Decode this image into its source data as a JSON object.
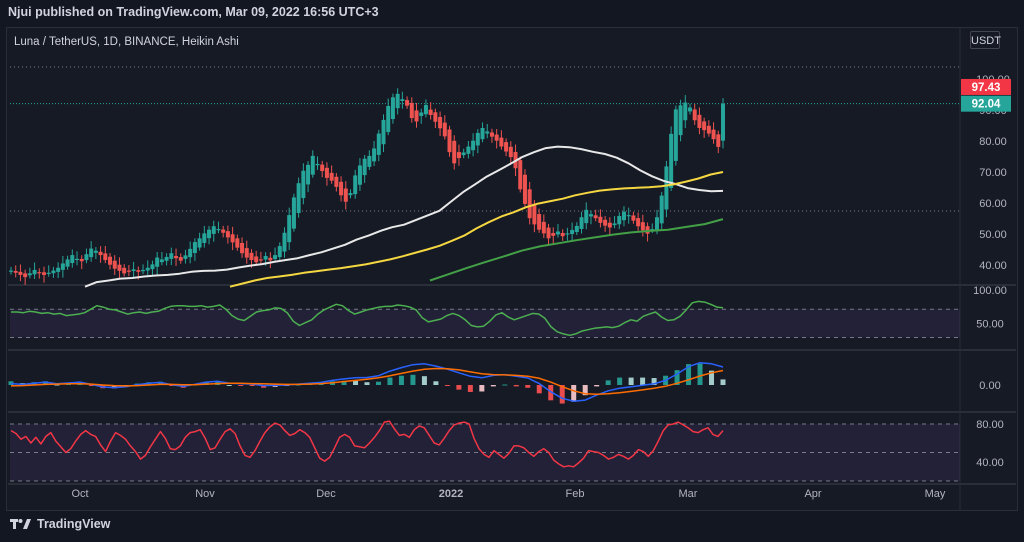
{
  "header": {
    "text": "Njui published on TradingView.com, Mar 09, 2022 16:56 UTC+3"
  },
  "symbol": {
    "text": "Luna / TetherUS, 1D, BINANCE, Heikin Ashi"
  },
  "currency": {
    "label": "USDT"
  },
  "footer": {
    "brand": "TradingView",
    "logo_icon": "tradingview-logo-icon"
  },
  "colors": {
    "up": "#26a69a",
    "down": "#ef5350",
    "ma_white": "#e8e8e8",
    "ma_yellow": "#f5d742",
    "ma_green": "#43a047",
    "rsi": "#4caf50",
    "stoch": "#f23645",
    "macd": "#2962ff",
    "signal": "#ff6d00"
  },
  "chart_data": [
    {
      "type": "candlestick",
      "title": "Luna / TetherUS, 1D, BINANCE, Heikin Ashi",
      "x_labels": [
        "Oct",
        "Nov",
        "Dec",
        "2022",
        "Feb",
        "Mar",
        "Apr",
        "May"
      ],
      "y_ticks": [
        "100.00",
        "90.00",
        "80.00",
        "70.00",
        "60.00",
        "50.00",
        "40.00"
      ],
      "ylim": [
        35,
        107
      ],
      "badges": [
        {
          "label": "97.43",
          "value": 97.43,
          "color": "#f23645"
        },
        {
          "label": "92.04",
          "value": 92.04,
          "color": "#26a69a"
        }
      ],
      "close": [
        38.2,
        37.5,
        36.8,
        36.1,
        37.3,
        38.4,
        37.6,
        36.8,
        37.5,
        38.2,
        39.1,
        40.5,
        41.8,
        43.2,
        42.0,
        41.2,
        43.5,
        45.3,
        44.6,
        43.2,
        41.6,
        40.1,
        38.8,
        38.1,
        37.3,
        37.9,
        38.6,
        37.8,
        38.4,
        39.1,
        40.2,
        42.4,
        41.8,
        42.6,
        43.8,
        42.2,
        41.4,
        43.1,
        45.2,
        47.4,
        48.6,
        50.2,
        51.4,
        52.5,
        51.6,
        50.4,
        48.9,
        47.3,
        45.6,
        43.8,
        42.4,
        41.6,
        40.9,
        41.7,
        42.9,
        41.5,
        43.2,
        46.1,
        50.4,
        56.1,
        61.8,
        66.4,
        70.4,
        72.3,
        75.2,
        72.6,
        70.3,
        68.1,
        67.2,
        65.2,
        62.5,
        60.4,
        63.2,
        68.9,
        72.1,
        74.3,
        75.2,
        77.6,
        82.4,
        86.8,
        91.3,
        94.1,
        95.2,
        93.5,
        91.4,
        87.4,
        86.3,
        89.2,
        91.6,
        88.4,
        86.2,
        84.1,
        81.5,
        76.4,
        72.8,
        74.5,
        76.3,
        78.2,
        80.1,
        82.6,
        84.2,
        83.1,
        81.4,
        80.1,
        78.2,
        76.6,
        74.8,
        71.2,
        64.4,
        59.7,
        55.1,
        53.1,
        51.4,
        50.2,
        48.6,
        49.4,
        50.8,
        49.3,
        50.2,
        51.3,
        52.6,
        55.4,
        57.8,
        56.4,
        55.1,
        53.6,
        52.7,
        52.1,
        53.4,
        55.8,
        57.2,
        56.1,
        54.3,
        52.5,
        51.2,
        50.1,
        51.6,
        55.4,
        62.4,
        71.8,
        82.3,
        90.2,
        91.5,
        92.4,
        90.8,
        86.7,
        84.2,
        83.5,
        82.4,
        80.6,
        78.1,
        92.04
      ],
      "ma_white": [
        33,
        34.5,
        35,
        35.6,
        35.8,
        36.3,
        36.6,
        36.8,
        37.2,
        37.8,
        38.1,
        38.2,
        38.5,
        39.2,
        39.8,
        40.3,
        41.0,
        41.6,
        42.2,
        43.2,
        44.1,
        45.3,
        46.5,
        48.2,
        49.5,
        51.0,
        52.2,
        53.0,
        54.5,
        56.0,
        57.5,
        60.5,
        63.5,
        66.0,
        68.5,
        70.5,
        72.6,
        74.8,
        76.4,
        77.7,
        78.2,
        78.0,
        77.4,
        76.5,
        75.8,
        74.6,
        72.8,
        70.5,
        68.6,
        67.1,
        66.1,
        64.8,
        64.2,
        63.8,
        63.9
      ],
      "ma_yellow": [
        33,
        34.0,
        35.0,
        35.8,
        36.3,
        36.8,
        37.5,
        38.0,
        38.5,
        39.0,
        39.6,
        40.2,
        41.0,
        41.8,
        42.8,
        43.9,
        45.0,
        46.2,
        47.8,
        49.5,
        51.8,
        53.8,
        55.6,
        57.0,
        58.6,
        59.8,
        60.6,
        61.4,
        62.5,
        63.3,
        64.0,
        64.4,
        64.7,
        64.9,
        65.1,
        65.4,
        66.0,
        66.9,
        67.9,
        69.2,
        70.0
      ],
      "ma_green": [
        35,
        37.0,
        39.0,
        40.9,
        42.7,
        44.6,
        46.0,
        47.0,
        48.0,
        48.9,
        49.8,
        50.5,
        51.0,
        51.4,
        52.3,
        53.2,
        54.8
      ],
      "rsi": {
        "y_ticks": [
          "100.00",
          "50.00"
        ],
        "values": [
          66,
          66,
          65,
          67,
          66,
          64,
          65,
          63,
          64,
          61,
          62,
          63,
          65,
          70,
          75,
          73,
          70,
          69,
          66,
          63,
          65,
          66,
          64,
          66,
          67,
          71,
          74,
          75,
          75,
          74,
          74,
          75,
          73,
          74,
          76,
          70,
          61,
          56,
          54,
          60,
          66,
          68,
          69,
          72,
          71,
          65,
          53,
          47,
          51,
          55,
          63,
          69,
          73,
          77,
          75,
          68,
          63,
          66,
          69,
          71,
          73,
          74,
          74,
          76,
          75,
          73,
          69,
          58,
          52,
          54,
          56,
          61,
          64,
          61,
          55,
          47,
          45,
          46,
          53,
          62,
          65,
          59,
          55,
          58,
          61,
          64,
          63,
          57,
          45,
          38,
          35,
          33,
          35,
          39,
          41,
          43,
          44,
          45,
          44,
          46,
          51,
          55,
          53,
          60,
          63,
          66,
          59,
          54,
          55,
          60,
          69,
          79,
          81,
          80,
          77,
          73,
          72
        ]
      },
      "macd": {
        "y_ticks": [
          "0.00"
        ],
        "macd": [
          0.5,
          0.2,
          0.6,
          1.0,
          0.4,
          0.7,
          1.0,
          0.2,
          -0.7,
          -0.9,
          -0.6,
          0.1,
          0.6,
          0.9,
          0.1,
          -0.5,
          0.2,
          1.0,
          1.3,
          0.6,
          0.5,
          0.3,
          -0.2,
          -0.1,
          0.0,
          0.3,
          0.6,
          0.9,
          1.6,
          2.1,
          2.5,
          2.6,
          3.2,
          4.8,
          6.0,
          7.0,
          7.3,
          6.5,
          5.5,
          4.2,
          3.0,
          2.5,
          3.3,
          3.6,
          3.0,
          2.4,
          0.5,
          -2.3,
          -4.6,
          -5.6,
          -5.2,
          -3.5,
          -2.0,
          -1.1,
          -0.6,
          -0.1,
          0.4,
          1.6,
          3.8,
          6.3,
          7.7,
          7.3,
          6.2
        ],
        "signal": [
          -0.3,
          -0.2,
          0.0,
          0.2,
          0.3,
          0.4,
          0.4,
          0.3,
          0.0,
          -0.2,
          -0.3,
          -0.2,
          0.0,
          0.2,
          0.2,
          0.1,
          0.1,
          0.3,
          0.5,
          0.6,
          0.6,
          0.5,
          0.4,
          0.3,
          0.2,
          0.2,
          0.3,
          0.5,
          0.8,
          1.2,
          1.6,
          2.0,
          2.5,
          3.2,
          4.0,
          4.8,
          5.4,
          5.7,
          5.6,
          5.2,
          4.5,
          3.9,
          3.6,
          3.5,
          3.3,
          3.0,
          2.3,
          1.0,
          -0.6,
          -2.0,
          -3.0,
          -3.2,
          -3.0,
          -2.7,
          -2.2,
          -1.7,
          -1.1,
          -0.4,
          0.6,
          1.8,
          3.1,
          4.2,
          5.0
        ]
      },
      "stoch_rsi": {
        "y_ticks": [
          "80.00",
          "40.00"
        ],
        "values": [
          73,
          70,
          64,
          67,
          60,
          66,
          59,
          67,
          71,
          62,
          56,
          50,
          54,
          62,
          69,
          73,
          69,
          67,
          58,
          51,
          62,
          71,
          68,
          64,
          57,
          51,
          43,
          47,
          56,
          64,
          72,
          65,
          54,
          53,
          57,
          66,
          71,
          72,
          74,
          65,
          53,
          55,
          64,
          72,
          75,
          70,
          57,
          47,
          45,
          52,
          62,
          71,
          77,
          81,
          79,
          73,
          68,
          70,
          74,
          71,
          66,
          55,
          44,
          41,
          45,
          55,
          66,
          69,
          66,
          57,
          56,
          55,
          60,
          66,
          73,
          82,
          83,
          75,
          68,
          69,
          66,
          74,
          78,
          76,
          68,
          60,
          58,
          65,
          73,
          79,
          81,
          82,
          80,
          65,
          54,
          48,
          45,
          52,
          48,
          44,
          49,
          57,
          57,
          55,
          50,
          46,
          51,
          54,
          50,
          42,
          38,
          35,
          36,
          35,
          39,
          44,
          52,
          51,
          50,
          47,
          43,
          45,
          48,
          46,
          43,
          47,
          53,
          51,
          46,
          52,
          62,
          73,
          79,
          80,
          82,
          79,
          76,
          72,
          71,
          74,
          76,
          69,
          67,
          73
        ]
      }
    }
  ]
}
